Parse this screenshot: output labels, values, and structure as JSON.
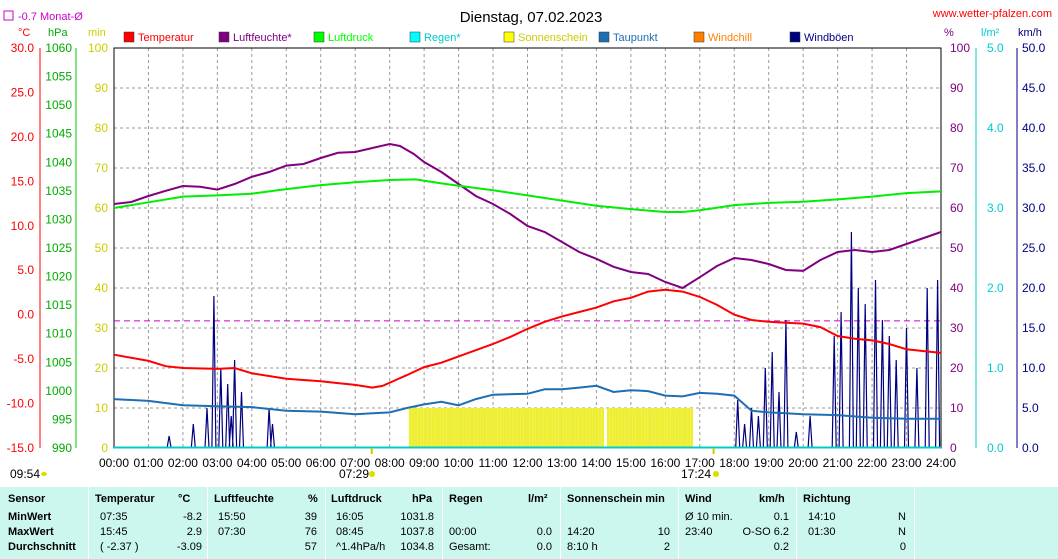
{
  "chart_data": {
    "type": "line",
    "title": "Dienstag, 07.02.2023",
    "site": "www.wetter-pfalzen.com",
    "monthly_avg_label": "-0.7 Monat-Ø",
    "monthly_avg_value": -0.7,
    "axes": {
      "temp": {
        "unit": "°C",
        "min": -15,
        "max": 30,
        "ticks": [
          "-15.0",
          "-10.0",
          "-5.0",
          "0.0",
          "5.0",
          "10.0",
          "15.0",
          "20.0",
          "25.0",
          "30.0"
        ],
        "color": "#ff0000"
      },
      "pressure": {
        "unit": "hPa",
        "min": 990,
        "max": 1060,
        "ticks": [
          "990",
          "995",
          "1000",
          "1005",
          "1010",
          "1015",
          "1020",
          "1025",
          "1030",
          "1035",
          "1040",
          "1045",
          "1050",
          "1055",
          "1060"
        ],
        "color": "#00cc00"
      },
      "sun": {
        "unit": "min",
        "min": 0,
        "max": 100,
        "ticks": [
          "0",
          "10",
          "20",
          "30",
          "40",
          "50",
          "60",
          "70",
          "80",
          "90",
          "100"
        ],
        "color": "#dddd00"
      },
      "humidity": {
        "unit": "%",
        "min": 0,
        "max": 100,
        "ticks": [
          "0",
          "10",
          "20",
          "30",
          "40",
          "50",
          "60",
          "70",
          "80",
          "90",
          "100"
        ],
        "color": "#800080"
      },
      "rain": {
        "unit": "l/m²",
        "min": 0,
        "max": 5,
        "ticks": [
          "0.0",
          "1.0",
          "2.0",
          "3.0",
          "4.0",
          "5.0"
        ],
        "color": "#00cccc"
      },
      "wind": {
        "unit": "km/h",
        "min": 0,
        "max": 50,
        "ticks": [
          "0.0",
          "5.0",
          "10.0",
          "15.0",
          "20.0",
          "25.0",
          "30.0",
          "35.0",
          "40.0",
          "45.0",
          "50.0"
        ],
        "color": "#000080"
      }
    },
    "x_ticks": [
      "00:00",
      "01:00",
      "02:00",
      "03:00",
      "04:00",
      "05:00",
      "06:00",
      "07:00",
      "08:00",
      "09:00",
      "10:00",
      "11:00",
      "12:00",
      "13:00",
      "14:00",
      "15:00",
      "16:00",
      "17:00",
      "18:00",
      "19:00",
      "20:00",
      "21:00",
      "22:00",
      "23:00",
      "24:00"
    ],
    "sunrise": "07:29",
    "sunrise_hour": 7.48,
    "sunset": "17:24",
    "sunset_hour": 17.4,
    "corner_time": "09:54",
    "legend": [
      {
        "name": "Temperatur",
        "color": "#ff0000"
      },
      {
        "name": "Luftfeuchte*",
        "color": "#800080"
      },
      {
        "name": "Luftdruck",
        "color": "#00ff00"
      },
      {
        "name": "Regen*",
        "color": "#00ffff"
      },
      {
        "name": "Sonnenschein",
        "color": "#ffff00"
      },
      {
        "name": "Taupunkt",
        "color": "#1e6eb4"
      },
      {
        "name": "Windchill",
        "color": "#ff8000"
      },
      {
        "name": "Windböen",
        "color": "#000080"
      }
    ],
    "series": [
      {
        "name": "Temperatur",
        "axis": "temp",
        "color": "#ff0000",
        "points": [
          [
            0,
            -4.5
          ],
          [
            1,
            -5.2
          ],
          [
            1.5,
            -5.8
          ],
          [
            2,
            -6.0
          ],
          [
            3,
            -6.1
          ],
          [
            3.5,
            -6.0
          ],
          [
            4,
            -6.6
          ],
          [
            5,
            -7.2
          ],
          [
            6,
            -7.5
          ],
          [
            6.5,
            -7.7
          ],
          [
            7,
            -7.9
          ],
          [
            7.5,
            -8.2
          ],
          [
            7.8,
            -8.0
          ],
          [
            8.2,
            -7.3
          ],
          [
            8.5,
            -6.8
          ],
          [
            9,
            -5.9
          ],
          [
            9.5,
            -5.4
          ],
          [
            10,
            -4.7
          ],
          [
            10.5,
            -4.0
          ],
          [
            11,
            -3.3
          ],
          [
            11.5,
            -2.5
          ],
          [
            12,
            -1.6
          ],
          [
            12.5,
            -0.8
          ],
          [
            13,
            -0.2
          ],
          [
            13.5,
            0.3
          ],
          [
            14,
            0.8
          ],
          [
            14.5,
            1.5
          ],
          [
            15,
            1.9
          ],
          [
            15.5,
            2.6
          ],
          [
            16,
            2.8
          ],
          [
            16.5,
            2.6
          ],
          [
            17,
            2.0
          ],
          [
            17.5,
            1.1
          ],
          [
            18,
            0.0
          ],
          [
            18.5,
            -0.6
          ],
          [
            19,
            -0.8
          ],
          [
            19.5,
            -0.9
          ],
          [
            20,
            -1.0
          ],
          [
            20.5,
            -1.4
          ],
          [
            21,
            -2.4
          ],
          [
            21.5,
            -2.7
          ],
          [
            22,
            -2.9
          ],
          [
            22.5,
            -3.3
          ],
          [
            23,
            -3.9
          ],
          [
            23.5,
            -4.1
          ],
          [
            24,
            -4.3
          ]
        ]
      },
      {
        "name": "Luftfeuchte*",
        "axis": "humidity",
        "color": "#800080",
        "points": [
          [
            0,
            61
          ],
          [
            0.5,
            61.5
          ],
          [
            1,
            63
          ],
          [
            1.5,
            64.3
          ],
          [
            2,
            65.5
          ],
          [
            2.5,
            65.3
          ],
          [
            3,
            64.6
          ],
          [
            3.5,
            66
          ],
          [
            4,
            67.8
          ],
          [
            4.5,
            69
          ],
          [
            5,
            70.6
          ],
          [
            5.5,
            71
          ],
          [
            6,
            72.5
          ],
          [
            6.5,
            73.8
          ],
          [
            7,
            74
          ],
          [
            7.5,
            75
          ],
          [
            8,
            76
          ],
          [
            8.3,
            75.5
          ],
          [
            8.7,
            73.5
          ],
          [
            9,
            71.5
          ],
          [
            9.5,
            69
          ],
          [
            10,
            66
          ],
          [
            10.5,
            63
          ],
          [
            11,
            61
          ],
          [
            11.5,
            58.5
          ],
          [
            12,
            55.5
          ],
          [
            12.5,
            54
          ],
          [
            13,
            51.5
          ],
          [
            13.5,
            49
          ],
          [
            14,
            47.3
          ],
          [
            14.5,
            45.3
          ],
          [
            15,
            44
          ],
          [
            15.5,
            43.5
          ],
          [
            16,
            41.5
          ],
          [
            16.5,
            40
          ],
          [
            17,
            42.7
          ],
          [
            17.5,
            45.5
          ],
          [
            18,
            47.5
          ],
          [
            18.5,
            47
          ],
          [
            19,
            46
          ],
          [
            19.5,
            44.5
          ],
          [
            20,
            44.3
          ],
          [
            20.5,
            47
          ],
          [
            21,
            49
          ],
          [
            21.5,
            49.5
          ],
          [
            22,
            49
          ],
          [
            22.5,
            49.5
          ],
          [
            23,
            51
          ],
          [
            23.5,
            52.5
          ],
          [
            24,
            54
          ]
        ]
      },
      {
        "name": "Luftdruck",
        "axis": "pressure",
        "color": "#00ee00",
        "points": [
          [
            0,
            1032.0
          ],
          [
            1,
            1033.0
          ],
          [
            2,
            1034.0
          ],
          [
            3,
            1034.2
          ],
          [
            4,
            1034.5
          ],
          [
            5,
            1035.3
          ],
          [
            6,
            1036.0
          ],
          [
            7,
            1036.5
          ],
          [
            8,
            1036.9
          ],
          [
            8.75,
            1037.0
          ],
          [
            9.5,
            1036.3
          ],
          [
            10,
            1035.9
          ],
          [
            11,
            1035.1
          ],
          [
            12,
            1034.2
          ],
          [
            13,
            1033.3
          ],
          [
            14,
            1032.4
          ],
          [
            15,
            1031.8
          ],
          [
            16,
            1031.3
          ],
          [
            16.5,
            1031.3
          ],
          [
            17,
            1031.6
          ],
          [
            18,
            1032.5
          ],
          [
            19,
            1032.9
          ],
          [
            20,
            1033.1
          ],
          [
            21,
            1033.5
          ],
          [
            22,
            1034.0
          ],
          [
            23,
            1034.6
          ],
          [
            24,
            1034.9
          ]
        ]
      },
      {
        "name": "Taupunkt",
        "axis": "temp",
        "color": "#1e6eb4",
        "points": [
          [
            0,
            -9.5
          ],
          [
            1,
            -9.7
          ],
          [
            2,
            -10.2
          ],
          [
            3,
            -10.3
          ],
          [
            4,
            -10.4
          ],
          [
            5,
            -10.8
          ],
          [
            6,
            -10.9
          ],
          [
            7,
            -11.2
          ],
          [
            8,
            -11.0
          ],
          [
            8.5,
            -10.5
          ],
          [
            9,
            -10.1
          ],
          [
            9.5,
            -9.8
          ],
          [
            10,
            -10.2
          ],
          [
            10.5,
            -9.5
          ],
          [
            11,
            -9.0
          ],
          [
            12,
            -8.9
          ],
          [
            12.5,
            -8.4
          ],
          [
            13,
            -8.4
          ],
          [
            13.5,
            -8.2
          ],
          [
            14,
            -8.0
          ],
          [
            14.5,
            -8.7
          ],
          [
            15,
            -8.5
          ],
          [
            15.5,
            -8.6
          ],
          [
            16,
            -9.1
          ],
          [
            16.5,
            -9.2
          ],
          [
            17,
            -8.8
          ],
          [
            17.5,
            -8.9
          ],
          [
            18,
            -9.1
          ],
          [
            18.5,
            -10.8
          ],
          [
            19,
            -11.0
          ],
          [
            19.5,
            -11.1
          ],
          [
            20,
            -11.2
          ],
          [
            21,
            -11.3
          ],
          [
            22,
            -11.6
          ],
          [
            23,
            -11.7
          ],
          [
            24,
            -11.7
          ]
        ]
      }
    ],
    "wind_gusts": [
      [
        1.6,
        1.5
      ],
      [
        2.3,
        3
      ],
      [
        2.7,
        5
      ],
      [
        2.9,
        19
      ],
      [
        3.1,
        10
      ],
      [
        3.3,
        8
      ],
      [
        3.4,
        4
      ],
      [
        3.5,
        11
      ],
      [
        3.7,
        7
      ],
      [
        4.5,
        5
      ],
      [
        4.6,
        3
      ],
      [
        18.1,
        6
      ],
      [
        18.3,
        3
      ],
      [
        18.5,
        5
      ],
      [
        18.7,
        4
      ],
      [
        18.9,
        10
      ],
      [
        19.1,
        12
      ],
      [
        19.3,
        7
      ],
      [
        19.5,
        16
      ],
      [
        19.8,
        2
      ],
      [
        20.2,
        4
      ],
      [
        20.9,
        14
      ],
      [
        21.1,
        17
      ],
      [
        21.4,
        27
      ],
      [
        21.6,
        20
      ],
      [
        21.8,
        18
      ],
      [
        22.1,
        21
      ],
      [
        22.3,
        16
      ],
      [
        22.5,
        14
      ],
      [
        22.7,
        11
      ],
      [
        23.0,
        15
      ],
      [
        23.3,
        10
      ],
      [
        23.6,
        20
      ],
      [
        23.9,
        21
      ]
    ],
    "sunshine": {
      "start": 8.6,
      "end": 16.8,
      "minutes": 10,
      "gap_around": 14.3
    }
  },
  "table": {
    "headers": {
      "sensor": "Sensor",
      "temp": "Temperatur",
      "temp_unit": "°C",
      "hum": "Luftfeuchte",
      "hum_unit": "%",
      "press": "Luftdruck",
      "press_unit": "hPa",
      "rain": "Regen",
      "rain_unit": "l/m²",
      "sun": "Sonnenschein min",
      "wind": "Wind",
      "wind_unit": "km/h",
      "dir": "Richtung"
    },
    "rows": [
      {
        "label": "MinWert",
        "temp_time": "07:35",
        "temp_val": "-8.2",
        "hum_time": "15:50",
        "hum_val": "39",
        "press_time": "16:05",
        "press_val": "1031.8",
        "rain_time": "",
        "rain_val": "",
        "sun_time": "",
        "sun_val": "",
        "wind_time": "Ø 10 min.",
        "wind_val": "0.1",
        "dir_time": "14:10",
        "dir_val": "N"
      },
      {
        "label": "MaxWert",
        "temp_time": "15:45",
        "temp_val": "2.9",
        "hum_time": "07:30",
        "hum_val": "76",
        "press_time": "08:45",
        "press_val": "1037.8",
        "rain_time": "00:00",
        "rain_val": "0.0",
        "sun_time": "14:20",
        "sun_val": "10",
        "wind_time": "23:40",
        "wind_val": "O-SO 6.2",
        "dir_time": "01:30",
        "dir_val": "N"
      },
      {
        "label": "Durchschnitt",
        "temp_time": "( -2.37 )",
        "temp_val": "-3.09",
        "hum_time": "",
        "hum_val": "57",
        "press_time": "^1.4hPa/h",
        "press_val": "1034.8",
        "rain_time": "Gesamt:",
        "rain_val": "0.0",
        "sun_time": "8:10 h",
        "sun_val": "2",
        "wind_time": "",
        "wind_val": "0.2",
        "dir_time": "",
        "dir_val": "0"
      }
    ]
  }
}
